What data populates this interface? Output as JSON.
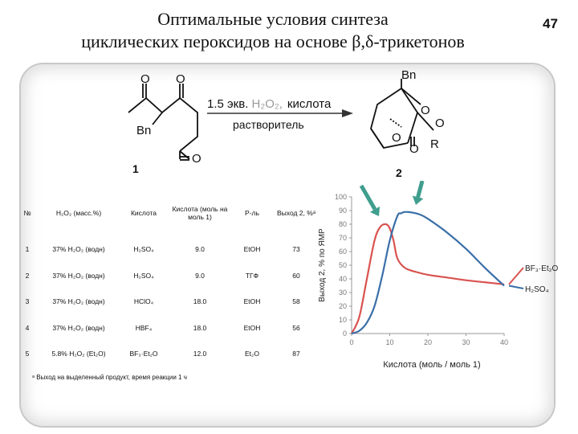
{
  "slide": {
    "title_line1": "Оптимальные условия синтеза",
    "title_line2": "циклических пероксидов на основе β,δ-трикетонов",
    "page_number": "47"
  },
  "scheme": {
    "reagent_line": "1.5 экв. H₂O₂,  кислота",
    "reagent_prefix": "1.5 экв. ",
    "reagent_h2o2": "H₂O₂,",
    "reagent_acid": "кислота",
    "solvent_line": "растворитель",
    "compound1_label": "1",
    "compound2_label": "2",
    "atom_O": "O",
    "group_Bn": "Bn",
    "group_R": "R",
    "colors": {
      "h2o2": "#9a9a9a",
      "arrow": "#333333"
    }
  },
  "table": {
    "headers": [
      "№",
      "H₂O₂ (масс.%)",
      "Кислота",
      "Кислота (моль на моль 1)",
      "Р-ль",
      "Выход 2, %ᵃ"
    ],
    "rows": [
      [
        "1",
        "37% H₂O₂ (водн)",
        "H₂SO₄",
        "9.0",
        "EtOH",
        "73"
      ],
      [
        "2",
        "37% H₂O₂ (водн)",
        "H₂SO₄",
        "9.0",
        "ТГФ",
        "60"
      ],
      [
        "3",
        "37% H₂O₂ (водн)",
        "HClO₄",
        "18.0",
        "EtOH",
        "58"
      ],
      [
        "4",
        "37% H₂O₂ (водн)",
        "HBF₄",
        "18.0",
        "EtOH",
        "56"
      ],
      [
        "5",
        "5.8% H₂O₂ (Et₂O)",
        "BF₃·Et₂O",
        "12.0",
        "Et₂O",
        "87"
      ]
    ],
    "footnote": "ᵃ Выход на выделенный продукт, время реакции 1 ч"
  },
  "chart_data": {
    "type": "line",
    "xlabel": "Кислота (моль / моль 1)",
    "ylabel": "Выход 2, % по ЯМР",
    "xlim": [
      0,
      40
    ],
    "ylim": [
      0,
      100
    ],
    "xticks": [
      0,
      10,
      20,
      30,
      40
    ],
    "yticks": [
      0,
      10,
      20,
      30,
      40,
      50,
      60,
      70,
      80,
      90,
      100
    ],
    "grid": false,
    "legend": "right, next to line ends",
    "series": [
      {
        "name": "BF₃·Et₂O",
        "color": "#d9534f",
        "x": [
          0,
          2,
          4,
          6,
          7.5,
          9,
          10,
          11,
          12,
          14,
          17,
          20,
          25,
          30,
          35,
          40
        ],
        "y": [
          0,
          12,
          40,
          68,
          78,
          80,
          77,
          68,
          55,
          48,
          45,
          43,
          41,
          39,
          37.5,
          36
        ]
      },
      {
        "name": "H₂SO₄",
        "color": "#3a6fa8",
        "x": [
          0,
          2,
          4,
          6,
          8,
          10,
          12,
          13,
          14,
          16,
          18,
          20,
          25,
          30,
          35,
          40
        ],
        "y": [
          0,
          2,
          8,
          20,
          42,
          68,
          86,
          88,
          89,
          88.5,
          87,
          84,
          74,
          62,
          48,
          35
        ]
      }
    ],
    "annotations": [
      {
        "type": "arrow",
        "color": "#3f9e8e",
        "label": ""
      },
      {
        "type": "arrow",
        "color": "#3f9e8e",
        "label": ""
      }
    ]
  }
}
